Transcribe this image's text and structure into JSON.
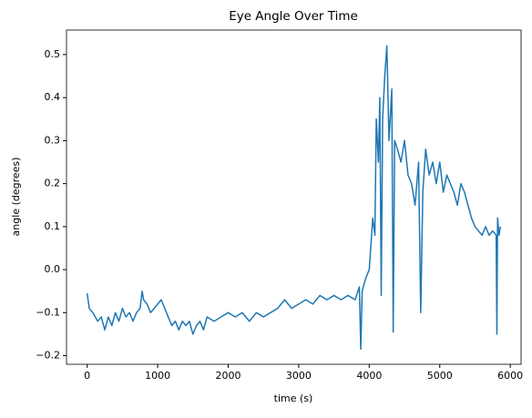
{
  "chart_data": {
    "type": "line",
    "title": "Eye Angle Over Time",
    "xlabel": "time (s)",
    "ylabel": "angle (degrees)",
    "xlim": [
      -293,
      6153
    ],
    "ylim": [
      -0.22,
      0.557
    ],
    "xticks": [
      0,
      1000,
      2000,
      3000,
      4000,
      5000,
      6000
    ],
    "yticks": [
      {
        "value": -0.2,
        "label": "−0.2"
      },
      {
        "value": -0.1,
        "label": "−0.1"
      },
      {
        "value": 0,
        "label": "0.0"
      },
      {
        "value": 0.1,
        "label": "0.1"
      },
      {
        "value": 0.2,
        "label": "0.2"
      },
      {
        "value": 0.3,
        "label": "0.3"
      },
      {
        "value": 0.4,
        "label": "0.4"
      },
      {
        "value": 0.5,
        "label": "0.5"
      }
    ],
    "series": [
      {
        "color": "#1f77b4",
        "x": [
          0,
          30,
          80,
          150,
          200,
          250,
          300,
          350,
          400,
          450,
          500,
          550,
          600,
          650,
          700,
          750,
          780,
          800,
          850,
          900,
          950,
          1000,
          1050,
          1100,
          1150,
          1200,
          1250,
          1300,
          1350,
          1400,
          1450,
          1500,
          1550,
          1600,
          1650,
          1700,
          1800,
          1900,
          2000,
          2100,
          2200,
          2300,
          2400,
          2500,
          2600,
          2700,
          2800,
          2900,
          3000,
          3100,
          3200,
          3300,
          3400,
          3500,
          3600,
          3700,
          3800,
          3860,
          3880,
          3900,
          3950,
          4000,
          4050,
          4080,
          4100,
          4130,
          4150,
          4170,
          4190,
          4220,
          4250,
          4280,
          4320,
          4340,
          4360,
          4400,
          4450,
          4500,
          4550,
          4600,
          4650,
          4700,
          4730,
          4760,
          4800,
          4850,
          4900,
          4950,
          5000,
          5050,
          5100,
          5150,
          5200,
          5250,
          5300,
          5350,
          5400,
          5450,
          5500,
          5550,
          5600,
          5650,
          5700,
          5750,
          5800,
          5810,
          5820,
          5840,
          5860
        ],
        "values": [
          -0.055,
          -0.09,
          -0.1,
          -0.12,
          -0.11,
          -0.14,
          -0.11,
          -0.13,
          -0.1,
          -0.12,
          -0.09,
          -0.11,
          -0.1,
          -0.12,
          -0.1,
          -0.09,
          -0.05,
          -0.07,
          -0.08,
          -0.1,
          -0.09,
          -0.08,
          -0.07,
          -0.09,
          -0.11,
          -0.13,
          -0.12,
          -0.14,
          -0.12,
          -0.13,
          -0.12,
          -0.15,
          -0.13,
          -0.12,
          -0.14,
          -0.11,
          -0.12,
          -0.11,
          -0.1,
          -0.11,
          -0.1,
          -0.12,
          -0.1,
          -0.11,
          -0.1,
          -0.09,
          -0.07,
          -0.09,
          -0.08,
          -0.07,
          -0.08,
          -0.06,
          -0.07,
          -0.06,
          -0.07,
          -0.06,
          -0.07,
          -0.04,
          -0.185,
          -0.05,
          -0.02,
          0.0,
          0.12,
          0.08,
          0.35,
          0.25,
          0.4,
          -0.06,
          0.35,
          0.45,
          0.52,
          0.3,
          0.42,
          -0.145,
          0.3,
          0.28,
          0.25,
          0.3,
          0.22,
          0.2,
          0.15,
          0.25,
          -0.1,
          0.18,
          0.28,
          0.22,
          0.25,
          0.2,
          0.25,
          0.18,
          0.22,
          0.2,
          0.18,
          0.15,
          0.2,
          0.18,
          0.15,
          0.12,
          0.1,
          0.09,
          0.08,
          0.1,
          0.08,
          0.09,
          0.08,
          -0.15,
          0.12,
          0.08,
          0.1
        ]
      }
    ]
  }
}
